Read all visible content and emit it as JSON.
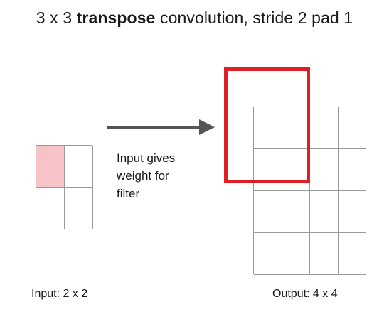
{
  "title": {
    "prefix": "3 x 3 ",
    "emphasis": "transpose",
    "suffix": " convolution, stride 2 pad 1"
  },
  "note": {
    "lines": [
      "Input gives",
      "weight for",
      "filter"
    ]
  },
  "input": {
    "caption": "Input: 2 x 2",
    "rows": 2,
    "cols": 2,
    "highlighted_cell": [
      0,
      0
    ]
  },
  "output": {
    "caption": "Output: 4 x 4",
    "rows": 4,
    "cols": 4
  },
  "filter": {
    "size": "3 x 3",
    "color": "#e01e26"
  },
  "colors": {
    "highlight": "#f6c3c6",
    "filter_border": "#e01e26",
    "arrow": "#555555",
    "grid_line": "#9a9a9a"
  }
}
